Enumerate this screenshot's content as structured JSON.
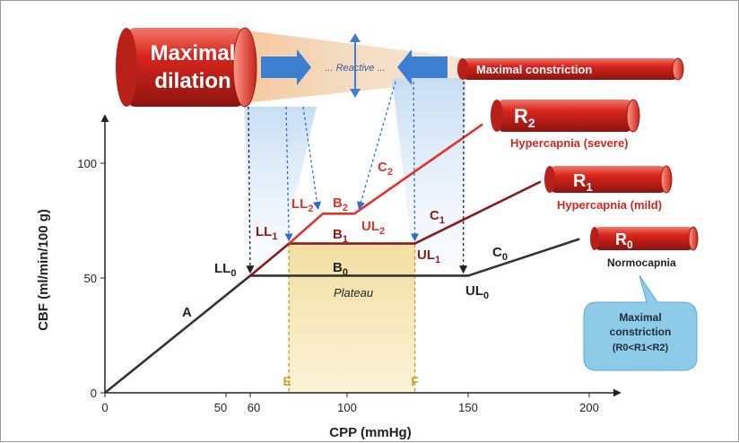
{
  "chart_data": {
    "type": "line",
    "xlabel": "CPP (mmHg)",
    "ylabel": "CBF (ml/min/100 g)",
    "xlim": [
      0,
      220
    ],
    "ylim": [
      0,
      120
    ],
    "x_ticks": [
      0,
      50,
      60,
      100,
      150,
      200
    ],
    "y_ticks": [
      0,
      50,
      100
    ],
    "colors": {
      "normocapnia": "#333333",
      "mild": "#8b1a1a",
      "severe": "#e0342a",
      "tick_dashed": "#2e6bd1",
      "plateau_fill": "#f6e8b5",
      "plateau_line": "#c9a227"
    },
    "series": [
      {
        "name": "C0",
        "x": [
          0,
          60,
          150,
          196
        ],
        "y": [
          0,
          51,
          51,
          67
        ]
      },
      {
        "name": "C1",
        "x": [
          60,
          76,
          128,
          180
        ],
        "y": [
          51,
          65,
          65,
          92
        ]
      },
      {
        "name": "C2",
        "x": [
          76,
          90,
          103,
          156
        ],
        "y": [
          65,
          78,
          78,
          117
        ]
      }
    ],
    "labels": {
      "A": "A",
      "plateau": "Plateau",
      "B0": {
        "base": "B",
        "sub": "0"
      },
      "B1": {
        "base": "B",
        "sub": "1"
      },
      "B2": {
        "base": "B",
        "sub": "2"
      },
      "C0": {
        "base": "C",
        "sub": "0"
      },
      "C1": {
        "base": "C",
        "sub": "1"
      },
      "C2": {
        "base": "C",
        "sub": "2"
      },
      "LL0": {
        "base": "LL",
        "sub": "0"
      },
      "LL1": {
        "base": "LL",
        "sub": "1"
      },
      "LL2": {
        "base": "LL",
        "sub": "2"
      },
      "UL0": {
        "base": "UL",
        "sub": "0"
      },
      "UL1": {
        "base": "UL",
        "sub": "1"
      },
      "UL2": {
        "base": "UL",
        "sub": "2"
      },
      "E": "E",
      "F": "F"
    },
    "vessels": {
      "dilation": "Maximal\ndilation",
      "reactive": "... Reactive ...",
      "constriction": "Maximal constriction",
      "R2": {
        "base": "R",
        "sub": "2"
      },
      "R2_caption": "Hypercapnia (severe)",
      "R1": {
        "base": "R",
        "sub": "1"
      },
      "R1_caption": "Hypercapnia (mild)",
      "R0": {
        "base": "R",
        "sub": "0"
      },
      "R0_caption": "Normocapnia"
    },
    "callout": {
      "line1": "Maximal",
      "line2": "constriction",
      "line3": "(R0<R1<R2)"
    }
  }
}
